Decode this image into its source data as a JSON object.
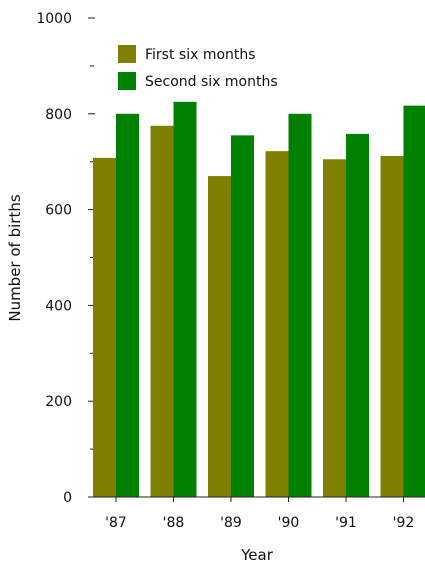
{
  "chart_data": {
    "type": "bar",
    "categories": [
      "'87",
      "'88",
      "'89",
      "'90",
      "'91",
      "'92"
    ],
    "series": [
      {
        "name": "First six months",
        "values": [
          708,
          775,
          670,
          722,
          705,
          712
        ],
        "color": "#808000"
      },
      {
        "name": "Second six months",
        "values": [
          800,
          825,
          755,
          800,
          758,
          817
        ],
        "color": "#008000"
      }
    ],
    "xlabel": "Year",
    "ylabel": "Number of births",
    "ylim": [
      0,
      1000
    ],
    "yticks": [
      "0",
      "200",
      "400",
      "600",
      "800",
      "1000"
    ],
    "legend_position": "top-left",
    "grid": false
  }
}
